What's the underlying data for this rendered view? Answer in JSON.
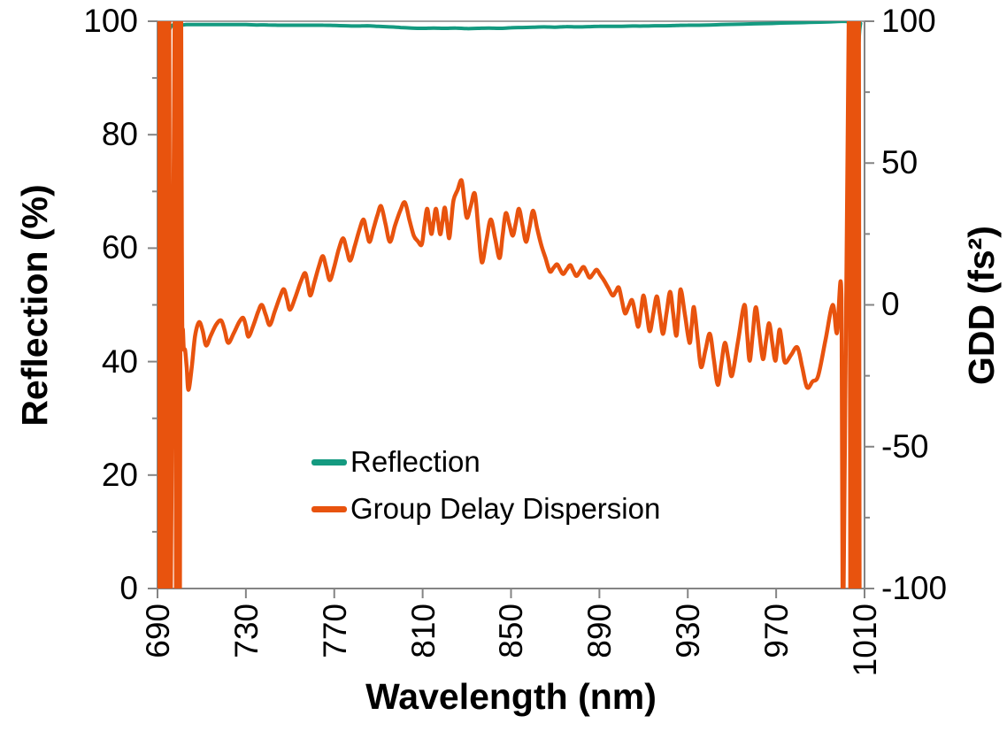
{
  "chart_data": {
    "type": "line",
    "title": "",
    "background": "#FFFFFF",
    "axis_color": "#848484",
    "grid": false,
    "x_axis": {
      "label": "Wavelength (nm)",
      "min": 690,
      "max": 1010,
      "ticks": [
        690,
        730,
        770,
        810,
        850,
        890,
        930,
        970,
        1010
      ],
      "tick_labels": [
        "690",
        "730",
        "770",
        "810",
        "850",
        "890",
        "930",
        "970",
        "1010"
      ],
      "tick_label_rotation": -90
    },
    "y_left": {
      "label": "Reflection (%)",
      "min": 0,
      "max": 100,
      "ticks": [
        100,
        80,
        60,
        40,
        20,
        0
      ],
      "tick_labels": [
        "100",
        "80",
        "60",
        "40",
        "20",
        "0"
      ],
      "minor_ticks": [
        90,
        70,
        50,
        30,
        10
      ]
    },
    "y_right": {
      "label": "GDD (fs²)",
      "min": -100,
      "max": 100,
      "ticks": [
        100,
        50,
        0,
        -50,
        -100
      ],
      "tick_labels": [
        "100",
        "50",
        "0",
        "-50",
        "-100"
      ],
      "minor_ticks": [
        75,
        25,
        -25,
        -75
      ]
    },
    "legend": {
      "position": "inside-bottom-left",
      "items": [
        {
          "label": "Reflection",
          "color": "#149A80"
        },
        {
          "label": "Group Delay Dispersion",
          "color": "#E8530E"
        }
      ]
    },
    "series": [
      {
        "name": "Reflection",
        "axis": "left",
        "color": "#149A80",
        "width": 4,
        "points": [
          [
            690.3,
            100
          ],
          [
            690.9,
            99
          ],
          [
            691.5,
            96
          ],
          [
            692.2,
            88
          ],
          [
            693,
            82
          ],
          [
            693.8,
            90
          ],
          [
            694.8,
            97
          ],
          [
            696,
            99
          ],
          [
            698,
            99.4
          ],
          [
            700,
            99.3
          ],
          [
            703,
            99.4
          ],
          [
            706,
            99.4
          ],
          [
            710,
            99.4
          ],
          [
            715,
            99.4
          ],
          [
            720,
            99.4
          ],
          [
            725,
            99.4
          ],
          [
            730,
            99.4
          ],
          [
            735,
            99.35
          ],
          [
            740,
            99.35
          ],
          [
            745,
            99.3
          ],
          [
            750,
            99.3
          ],
          [
            755,
            99.3
          ],
          [
            760,
            99.3
          ],
          [
            765,
            99.3
          ],
          [
            770,
            99.25
          ],
          [
            775,
            99.2
          ],
          [
            780,
            99.15
          ],
          [
            785,
            99.2
          ],
          [
            790,
            99.1
          ],
          [
            795,
            99.0
          ],
          [
            800,
            98.9
          ],
          [
            805,
            98.8
          ],
          [
            810,
            98.75
          ],
          [
            815,
            98.8
          ],
          [
            820,
            98.75
          ],
          [
            825,
            98.8
          ],
          [
            830,
            98.7
          ],
          [
            835,
            98.75
          ],
          [
            840,
            98.8
          ],
          [
            845,
            98.75
          ],
          [
            850,
            98.85
          ],
          [
            855,
            98.9
          ],
          [
            860,
            98.95
          ],
          [
            865,
            99.0
          ],
          [
            870,
            98.95
          ],
          [
            875,
            99.05
          ],
          [
            880,
            99.0
          ],
          [
            885,
            99.05
          ],
          [
            890,
            99.1
          ],
          [
            895,
            99.1
          ],
          [
            900,
            99.1
          ],
          [
            905,
            99.15
          ],
          [
            910,
            99.15
          ],
          [
            915,
            99.2
          ],
          [
            920,
            99.2
          ],
          [
            925,
            99.25
          ],
          [
            930,
            99.3
          ],
          [
            935,
            99.3
          ],
          [
            940,
            99.35
          ],
          [
            945,
            99.4
          ],
          [
            950,
            99.45
          ],
          [
            955,
            99.5
          ],
          [
            960,
            99.55
          ],
          [
            965,
            99.6
          ],
          [
            970,
            99.65
          ],
          [
            975,
            99.7
          ],
          [
            980,
            99.75
          ],
          [
            985,
            99.8
          ],
          [
            990,
            99.85
          ],
          [
            995,
            99.9
          ],
          [
            998,
            99.95
          ],
          [
            1001,
            100
          ],
          [
            1003,
            99.9
          ],
          [
            1004.5,
            99.4
          ],
          [
            1005.5,
            98.3
          ],
          [
            1006.2,
            95.5
          ],
          [
            1006.8,
            92.5
          ],
          [
            1007.3,
            95.5
          ],
          [
            1007.8,
            98.5
          ],
          [
            1008.2,
            99.6
          ]
        ]
      },
      {
        "name": "Group Delay Dispersion",
        "axis": "right",
        "color": "#E8530E",
        "width": 4.5,
        "points": [
          [
            690.2,
            -130
          ],
          [
            690.5,
            130
          ],
          [
            690.8,
            -130
          ],
          [
            691.1,
            130
          ],
          [
            691.4,
            -130
          ],
          [
            691.8,
            130
          ],
          [
            692.2,
            -130
          ],
          [
            692.6,
            130
          ],
          [
            693.0,
            -130
          ],
          [
            693.4,
            130
          ],
          [
            693.8,
            -130
          ],
          [
            694.3,
            130
          ],
          [
            694.8,
            -130
          ],
          [
            695.3,
            130
          ],
          [
            695.8,
            -130
          ],
          [
            698.0,
            130
          ],
          [
            698.4,
            -130
          ],
          [
            698.8,
            130
          ],
          [
            699.2,
            -130
          ],
          [
            699.6,
            130
          ],
          [
            700.1,
            -130
          ],
          [
            700.6,
            130
          ],
          [
            701.0,
            20
          ],
          [
            701.2,
            -8
          ],
          [
            701.5,
            -8.7
          ],
          [
            701.9,
            -15.5
          ],
          [
            702.5,
            -16
          ],
          [
            703.2,
            -22
          ],
          [
            704,
            -30
          ],
          [
            705.5,
            -22
          ],
          [
            707,
            -11
          ],
          [
            708.8,
            -6.1
          ],
          [
            710.4,
            -9
          ],
          [
            712,
            -14.3
          ],
          [
            714,
            -11
          ],
          [
            716.5,
            -7
          ],
          [
            718.8,
            -5.5
          ],
          [
            720.4,
            -9
          ],
          [
            722,
            -13.4
          ],
          [
            724.5,
            -10
          ],
          [
            727,
            -6
          ],
          [
            728.8,
            -4.6
          ],
          [
            730,
            -7.5
          ],
          [
            731.2,
            -11.2
          ],
          [
            733.5,
            -7
          ],
          [
            735.5,
            -2.5
          ],
          [
            737.2,
            0
          ],
          [
            739,
            -3.5
          ],
          [
            740.8,
            -7.1
          ],
          [
            743,
            -2.5
          ],
          [
            745.5,
            3
          ],
          [
            747.2,
            5.5
          ],
          [
            748.6,
            2
          ],
          [
            750,
            -1.7
          ],
          [
            752.5,
            3
          ],
          [
            755,
            8.5
          ],
          [
            756.8,
            11.2
          ],
          [
            758,
            7.5
          ],
          [
            759.2,
            3.3
          ],
          [
            761,
            8
          ],
          [
            763,
            13.5
          ],
          [
            764.8,
            17.2
          ],
          [
            766.4,
            13
          ],
          [
            768,
            8.7
          ],
          [
            770,
            13.5
          ],
          [
            772,
            19.5
          ],
          [
            774,
            23.5
          ],
          [
            775.6,
            19.5
          ],
          [
            777.2,
            15.6
          ],
          [
            779.2,
            20.5
          ],
          [
            781.2,
            26
          ],
          [
            783.2,
            30.1
          ],
          [
            784.6,
            26
          ],
          [
            786,
            22.2
          ],
          [
            787.8,
            27
          ],
          [
            789.5,
            31.5
          ],
          [
            791.2,
            34.8
          ],
          [
            793.2,
            28.5
          ],
          [
            795.2,
            22.2
          ],
          [
            797.5,
            28
          ],
          [
            800,
            33.5
          ],
          [
            802,
            36.1
          ],
          [
            804,
            30
          ],
          [
            806,
            24.4
          ],
          [
            807.8,
            22.5
          ],
          [
            809.6,
            21.3
          ],
          [
            810.8,
            28
          ],
          [
            812,
            33.9
          ],
          [
            813,
            29.5
          ],
          [
            814,
            25
          ],
          [
            815,
            29.5
          ],
          [
            816,
            33.9
          ],
          [
            817,
            29.5
          ],
          [
            818,
            24.9
          ],
          [
            819,
            29.5
          ],
          [
            820,
            34.3
          ],
          [
            821,
            29
          ],
          [
            822,
            23.5
          ],
          [
            823,
            30
          ],
          [
            824,
            37
          ],
          [
            825.8,
            40.5
          ],
          [
            827.6,
            43.9
          ],
          [
            828.8,
            37
          ],
          [
            830,
            30.7
          ],
          [
            831.8,
            35
          ],
          [
            833.6,
            39.2
          ],
          [
            835.2,
            27
          ],
          [
            836.8,
            15
          ],
          [
            838.8,
            22.5
          ],
          [
            840.8,
            30.1
          ],
          [
            842.8,
            23.5
          ],
          [
            844.8,
            16.5
          ],
          [
            846.2,
            24.5
          ],
          [
            847.6,
            32.3
          ],
          [
            849.2,
            28.5
          ],
          [
            850.8,
            24.4
          ],
          [
            852.2,
            29
          ],
          [
            853.6,
            33.9
          ],
          [
            855.2,
            28
          ],
          [
            856.8,
            22.2
          ],
          [
            858.4,
            27.5
          ],
          [
            860,
            33.2
          ],
          [
            861.8,
            27
          ],
          [
            863.6,
            21.3
          ],
          [
            865.6,
            16.5
          ],
          [
            867.6,
            11.8
          ],
          [
            869.2,
            13
          ],
          [
            870.8,
            14.3
          ],
          [
            872.2,
            12.5
          ],
          [
            873.6,
            10.9
          ],
          [
            875.2,
            12.5
          ],
          [
            876.8,
            14
          ],
          [
            878.2,
            12
          ],
          [
            879.6,
            10.2
          ],
          [
            881.2,
            11.8
          ],
          [
            882.8,
            13.4
          ],
          [
            884.2,
            11.5
          ],
          [
            885.6,
            9.6
          ],
          [
            887.2,
            11
          ],
          [
            888.8,
            12.4
          ],
          [
            890.4,
            10.5
          ],
          [
            892,
            8.7
          ],
          [
            894,
            6
          ],
          [
            896,
            3.3
          ],
          [
            897.4,
            4.7
          ],
          [
            898.8,
            6.1
          ],
          [
            900.2,
            1.5
          ],
          [
            901.6,
            -3
          ],
          [
            903.2,
            -0.6
          ],
          [
            904.8,
            1.7
          ],
          [
            906.2,
            -3
          ],
          [
            907.6,
            -7.7
          ],
          [
            908.8,
            -2.2
          ],
          [
            910,
            3.3
          ],
          [
            911.4,
            -3
          ],
          [
            912.8,
            -9.3
          ],
          [
            914.4,
            -3.1
          ],
          [
            916,
            3
          ],
          [
            917.4,
            -3.6
          ],
          [
            918.8,
            -10.2
          ],
          [
            920.4,
            -2.8
          ],
          [
            922,
            4.6
          ],
          [
            923.4,
            -3.1
          ],
          [
            924.8,
            -10.9
          ],
          [
            925.8,
            -2.7
          ],
          [
            926.8,
            5.5
          ],
          [
            928.8,
            -4
          ],
          [
            930.8,
            -13.4
          ],
          [
            931.8,
            -7.1
          ],
          [
            932.8,
            -0.8
          ],
          [
            934.4,
            -11.3
          ],
          [
            936,
            -21.9
          ],
          [
            938,
            -16
          ],
          [
            940,
            -10.2
          ],
          [
            941.8,
            -19.2
          ],
          [
            943.6,
            -28.2
          ],
          [
            945.2,
            -20.8
          ],
          [
            946.8,
            -13.4
          ],
          [
            948.4,
            -19.2
          ],
          [
            950,
            -25
          ],
          [
            952.8,
            -12.5
          ],
          [
            955.6,
            0
          ],
          [
            956.8,
            -9.8
          ],
          [
            958,
            -19.7
          ],
          [
            959.4,
            -10.2
          ],
          [
            960.8,
            -0.8
          ],
          [
            962.4,
            -9.9
          ],
          [
            964,
            -19.1
          ],
          [
            965.4,
            -12.8
          ],
          [
            966.8,
            -6.5
          ],
          [
            968.2,
            -13.1
          ],
          [
            969.6,
            -19.7
          ],
          [
            970.6,
            -14.2
          ],
          [
            971.6,
            -8.7
          ],
          [
            972.8,
            -14.5
          ],
          [
            974,
            -20.3
          ],
          [
            976.8,
            -17.6
          ],
          [
            979.6,
            -15
          ],
          [
            981.8,
            -22
          ],
          [
            984,
            -29.1
          ],
          [
            986.5,
            -27
          ],
          [
            989,
            -25
          ],
          [
            992.3,
            -12.5
          ],
          [
            995.6,
            0
          ],
          [
            997.5,
            -10
          ],
          [
            999.6,
            1.7
          ],
          [
            1000.2,
            -130
          ],
          [
            1003.2,
            130
          ],
          [
            1003.6,
            -130
          ],
          [
            1004.0,
            130
          ],
          [
            1004.4,
            -130
          ],
          [
            1004.8,
            130
          ],
          [
            1005.2,
            -130
          ],
          [
            1005.6,
            130
          ],
          [
            1006.0,
            -130
          ],
          [
            1006.4,
            130
          ],
          [
            1006.9,
            -130
          ],
          [
            1007.4,
            130
          ],
          [
            1007.8,
            -130
          ]
        ]
      }
    ]
  }
}
